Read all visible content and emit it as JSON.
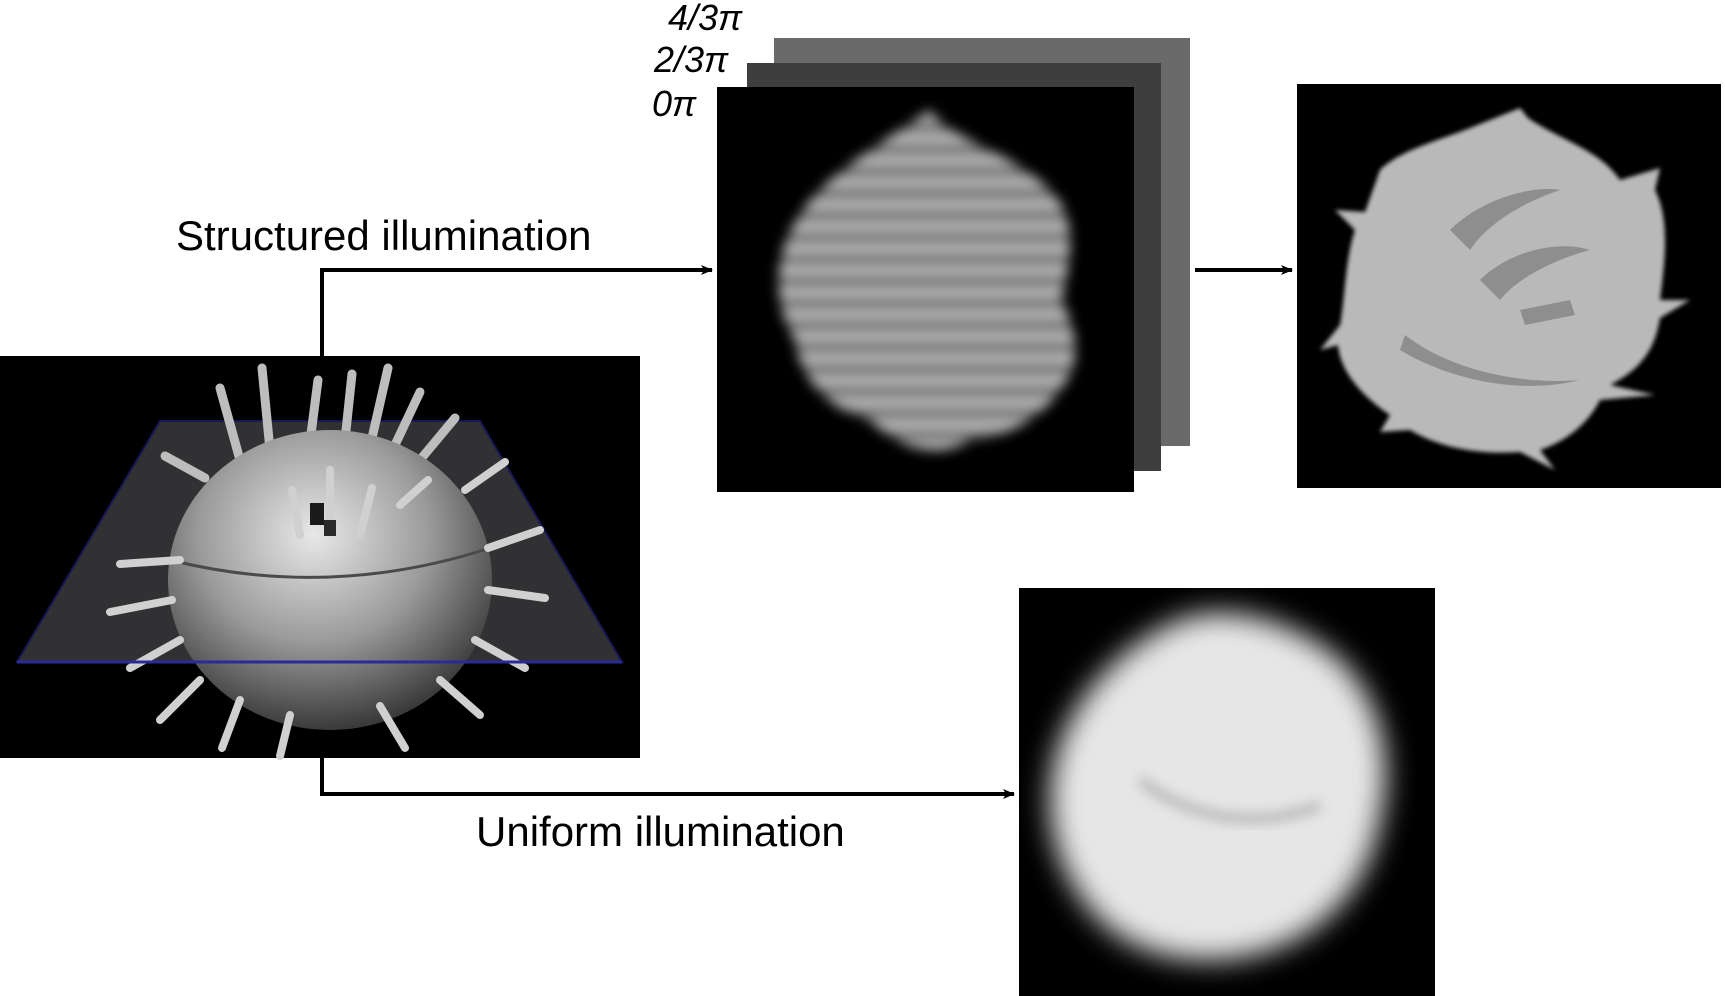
{
  "labels": {
    "structured": "Structured illumination",
    "uniform": "Uniform illumination"
  },
  "phases": [
    "4/3π",
    "2/3π",
    "0π"
  ],
  "colors": {
    "background": "#ffffff",
    "panel": "#000000",
    "frame_back": "#6a6a6a",
    "frame_middle": "#3e3e3e",
    "focal_plane": "#2a2a9a",
    "arrow": "#000000"
  },
  "panels": [
    {
      "name": "sample-3d-render",
      "content": "spiky sphere intersected by focal plane"
    },
    {
      "name": "structured-raw-images",
      "content": "three phase-shifted striped images"
    },
    {
      "name": "optical-section-result",
      "content": "sharp reconstructed section"
    },
    {
      "name": "widefield-image",
      "content": "blurred uniform-illumination image"
    }
  ]
}
